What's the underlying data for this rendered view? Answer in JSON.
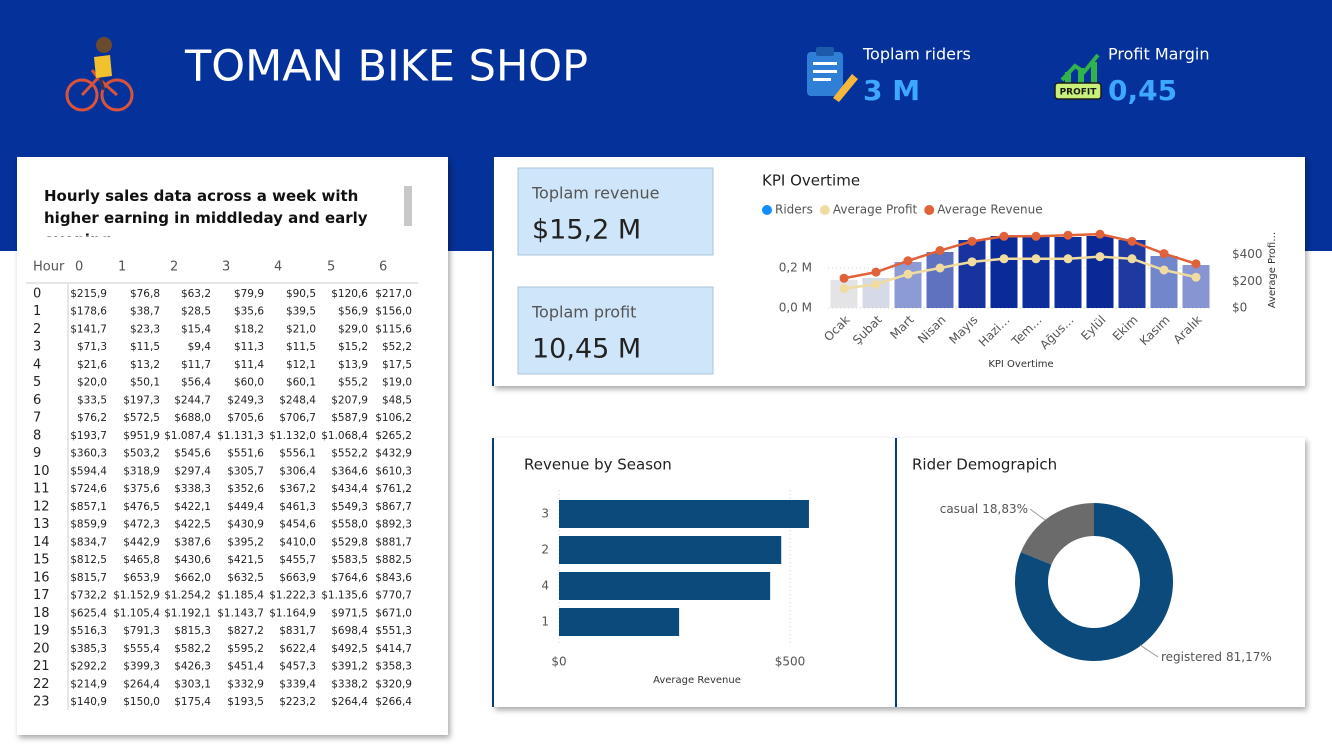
{
  "header": {
    "title": "TOMAN BIKE SHOP"
  },
  "kpis": [
    {
      "label": "Toplam riders",
      "value": "3 M"
    },
    {
      "label": "Profit Margin",
      "value": "0,45",
      "badge": "PROFIT"
    },
    {
      "label": "Toplam revenue",
      "value": "$15,2 M"
    },
    {
      "label": "Toplam profit",
      "value": "10,45 M"
    }
  ],
  "table": {
    "title": "Hourly sales data across a week with higher earning in middleday and early evening",
    "columns": [
      "Hour",
      "0",
      "1",
      "2",
      "3",
      "4",
      "5",
      "6"
    ],
    "rows": [
      [
        0,
        "$215,9",
        "$76,8",
        "$63,2",
        "$79,9",
        "$90,5",
        "$120,6",
        "$217,0"
      ],
      [
        1,
        "$178,6",
        "$38,7",
        "$28,5",
        "$35,6",
        "$39,5",
        "$56,9",
        "$156,0"
      ],
      [
        2,
        "$141,7",
        "$23,3",
        "$15,4",
        "$18,2",
        "$21,0",
        "$29,0",
        "$115,6"
      ],
      [
        3,
        "$71,3",
        "$11,5",
        "$9,4",
        "$11,3",
        "$11,5",
        "$15,2",
        "$52,2"
      ],
      [
        4,
        "$21,6",
        "$13,2",
        "$11,7",
        "$11,4",
        "$12,1",
        "$13,9",
        "$17,5"
      ],
      [
        5,
        "$20,0",
        "$50,1",
        "$56,4",
        "$60,0",
        "$60,1",
        "$55,2",
        "$19,0"
      ],
      [
        6,
        "$33,5",
        "$197,3",
        "$244,7",
        "$249,3",
        "$248,4",
        "$207,9",
        "$48,5"
      ],
      [
        7,
        "$76,2",
        "$572,5",
        "$688,0",
        "$705,6",
        "$706,7",
        "$587,9",
        "$106,2"
      ],
      [
        8,
        "$193,7",
        "$951,9",
        "$1.087,4",
        "$1.131,3",
        "$1.132,0",
        "$1.068,4",
        "$265,2"
      ],
      [
        9,
        "$360,3",
        "$503,2",
        "$545,6",
        "$551,6",
        "$556,1",
        "$552,2",
        "$432,9"
      ],
      [
        10,
        "$594,4",
        "$318,9",
        "$297,4",
        "$305,7",
        "$306,4",
        "$364,6",
        "$610,3"
      ],
      [
        11,
        "$724,6",
        "$375,6",
        "$338,3",
        "$352,6",
        "$367,2",
        "$434,4",
        "$761,2"
      ],
      [
        12,
        "$857,1",
        "$476,5",
        "$422,1",
        "$449,4",
        "$461,3",
        "$549,3",
        "$867,7"
      ],
      [
        13,
        "$859,9",
        "$472,3",
        "$422,5",
        "$430,9",
        "$454,6",
        "$558,0",
        "$892,3"
      ],
      [
        14,
        "$834,7",
        "$442,9",
        "$387,6",
        "$395,2",
        "$410,0",
        "$529,8",
        "$881,7"
      ],
      [
        15,
        "$812,5",
        "$465,8",
        "$430,6",
        "$421,5",
        "$455,7",
        "$583,5",
        "$882,5"
      ],
      [
        16,
        "$815,7",
        "$653,9",
        "$662,0",
        "$632,5",
        "$663,9",
        "$764,6",
        "$843,6"
      ],
      [
        17,
        "$732,2",
        "$1.152,9",
        "$1.254,2",
        "$1.185,4",
        "$1.222,3",
        "$1.135,6",
        "$770,7"
      ],
      [
        18,
        "$625,4",
        "$1.105,4",
        "$1.192,1",
        "$1.143,7",
        "$1.164,9",
        "$971,5",
        "$671,0"
      ],
      [
        19,
        "$516,3",
        "$791,3",
        "$815,3",
        "$827,2",
        "$831,7",
        "$698,4",
        "$551,3"
      ],
      [
        20,
        "$385,3",
        "$555,4",
        "$582,2",
        "$595,2",
        "$622,4",
        "$492,5",
        "$414,7"
      ],
      [
        21,
        "$292,2",
        "$399,3",
        "$426,3",
        "$451,4",
        "$457,3",
        "$391,2",
        "$358,3"
      ],
      [
        22,
        "$214,9",
        "$264,4",
        "$303,1",
        "$332,9",
        "$339,4",
        "$338,2",
        "$320,9"
      ],
      [
        23,
        "$140,9",
        "$150,0",
        "$175,4",
        "$193,5",
        "$223,2",
        "$264,4",
        "$266,4"
      ]
    ]
  },
  "chart_data": [
    {
      "type": "combo",
      "title": "KPI Overtime",
      "x_label": "KPI Overtime",
      "y2_label": "Average Profi…",
      "categories": [
        "Ocak",
        "Şubat",
        "Mart",
        "Nisan",
        "Mayıs",
        "Hazi…",
        "Tem…",
        "Ağus…",
        "Eylül",
        "Ekim",
        "Kasım",
        "Aralık"
      ],
      "ylim": [
        0,
        400000
      ],
      "yticks": [
        {
          "value": 0,
          "label": "0,0 M"
        },
        {
          "value": 200000,
          "label": "0,2 M"
        }
      ],
      "y2lim": [
        0,
        600
      ],
      "y2ticks": [
        {
          "value": 0,
          "label": "$0"
        },
        {
          "value": 200,
          "label": "$200"
        },
        {
          "value": 400,
          "label": "$400"
        }
      ],
      "series": [
        {
          "name": "Riders",
          "type": "bar",
          "color": "#118dff",
          "colors": [
            "#e4e4e6",
            "#d6d9e8",
            "#8c9bd4",
            "#5e72c0",
            "#17339e",
            "#0b2a99",
            "#0d2e9b",
            "#0d2e9b",
            "#0a2997",
            "#1e3aa0",
            "#7286cb",
            "#8796d2"
          ],
          "values": [
            140000,
            150000,
            230000,
            280000,
            340000,
            360000,
            355000,
            355000,
            360000,
            340000,
            260000,
            215000
          ]
        },
        {
          "name": "Average Profit",
          "type": "line",
          "axis": "y2",
          "color": "#f0dca0",
          "values": [
            146,
            177,
            254,
            300,
            346,
            369,
            369,
            369,
            385,
            369,
            285,
            231
          ]
        },
        {
          "name": "Average Revenue",
          "type": "line",
          "axis": "y2",
          "color": "#e0613a",
          "values": [
            223,
            269,
            354,
            431,
            500,
            538,
            538,
            546,
            554,
            500,
            408,
            331
          ]
        }
      ]
    },
    {
      "type": "hbar",
      "title": "Revenue by Season",
      "x_label": "Average Revenue",
      "categories": [
        "3",
        "2",
        "4",
        "1"
      ],
      "values": [
        541,
        481,
        457,
        260
      ],
      "color": "#0b4a7a",
      "xlim": [
        0,
        550
      ],
      "xticks": [
        {
          "value": 0,
          "label": "$0"
        },
        {
          "value": 500,
          "label": "$500"
        }
      ]
    },
    {
      "type": "donut",
      "title": "Rider Demograpich",
      "categories": [
        "casual",
        "registered"
      ],
      "values": [
        18.83,
        81.17
      ],
      "value_labels": [
        "18,83%",
        "81,17%"
      ],
      "colors": [
        "#6b6b6b",
        "#0b4a7a"
      ]
    }
  ]
}
